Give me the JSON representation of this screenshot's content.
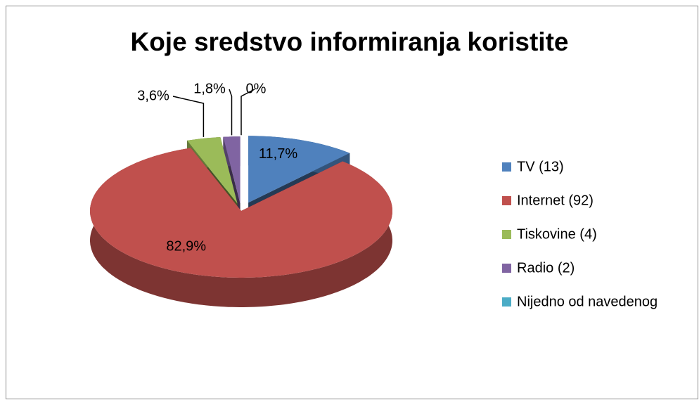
{
  "chart_data": {
    "type": "pie",
    "title": "Koje sredstvo informiranja koristite",
    "categories": [
      "TV (13)",
      "Internet (92)",
      "Tiskovine (4)",
      "Radio (2)",
      "Nijedno od navedenog"
    ],
    "values": [
      11.7,
      82.9,
      3.6,
      1.8,
      0
    ],
    "value_labels": [
      "11,7%",
      "82,9%",
      "3,6%",
      "1,8%",
      "0%"
    ],
    "colors": [
      "#4f81bd",
      "#c0504d",
      "#9bbb59",
      "#8064a2",
      "#4bacc6"
    ],
    "legend": "right",
    "three_d": true
  }
}
